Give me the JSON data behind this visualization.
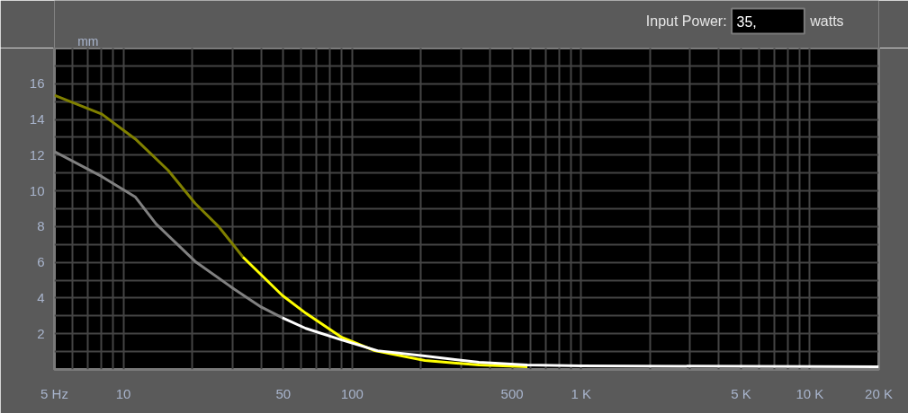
{
  "chart_data": {
    "type": "line",
    "ylabel": "mm",
    "log": "x",
    "grid": true,
    "xlim": [
      5,
      20000
    ],
    "ylim": [
      0,
      18
    ],
    "xticks": [
      {
        "value": 5,
        "label": "5 Hz"
      },
      {
        "value": 6,
        "label": null
      },
      {
        "value": 7,
        "label": null
      },
      {
        "value": 8,
        "label": null
      },
      {
        "value": 9,
        "label": null
      },
      10,
      {
        "value": 20,
        "label": null
      },
      {
        "value": 30,
        "label": null
      },
      {
        "value": 40,
        "label": null
      },
      50,
      {
        "value": 60,
        "label": null
      },
      {
        "value": 70,
        "label": null
      },
      {
        "value": 80,
        "label": null
      },
      {
        "value": 90,
        "label": null
      },
      100,
      {
        "value": 200,
        "label": null
      },
      {
        "value": 300,
        "label": null
      },
      {
        "value": 400,
        "label": null
      },
      500,
      {
        "value": 600,
        "label": null
      },
      {
        "value": 700,
        "label": null
      },
      {
        "value": 800,
        "label": null
      },
      {
        "value": 900,
        "label": null
      },
      {
        "value": 1000,
        "label": "1 K"
      },
      {
        "value": 2000,
        "label": null
      },
      {
        "value": 3000,
        "label": null
      },
      {
        "value": 4000,
        "label": null
      },
      {
        "value": 5000,
        "label": "5 K"
      },
      {
        "value": 6000,
        "label": null
      },
      {
        "value": 7000,
        "label": null
      },
      {
        "value": 8000,
        "label": null
      },
      {
        "value": 9000,
        "label": null
      },
      {
        "value": 10000,
        "label": "10 K"
      },
      {
        "value": 20000,
        "label": "20 K"
      }
    ],
    "yticks": [
      {
        "value": 1,
        "label": null
      },
      2,
      {
        "value": 3,
        "label": null
      },
      4,
      {
        "value": 5,
        "label": null
      },
      6,
      {
        "value": 7,
        "label": null
      },
      8,
      {
        "value": 9,
        "label": null
      },
      10,
      {
        "value": 11,
        "label": null
      },
      12,
      {
        "value": 13,
        "label": null
      },
      14,
      {
        "value": 15,
        "label": null
      },
      16,
      {
        "value": 17,
        "label": null
      }
    ],
    "annotations": [
      "Input Power:",
      "35,",
      "watts"
    ],
    "series": [
      {
        "type": "line",
        "color": "#808000",
        "x": [
          5,
          8.06,
          11.3,
          15.7,
          20.6,
          26.1,
          33.3
        ],
        "values": [
          15.35,
          14.3,
          12.9,
          11.15,
          9.3,
          8.0,
          6.3
        ]
      },
      {
        "type": "line",
        "color": "#ffff00",
        "x": [
          33.3,
          49.5,
          62.7,
          90,
          125.6,
          208,
          358,
          583
        ],
        "values": [
          6.3,
          4.15,
          3.15,
          1.8,
          1.05,
          0.5,
          0.25,
          0.15
        ]
      },
      {
        "type": "line",
        "color": "#808080",
        "x": [
          5,
          8.06,
          11.3,
          13.9,
          20.6,
          30.5,
          40,
          49.5
        ],
        "values": [
          12.2,
          10.8,
          9.65,
          8.15,
          6.05,
          4.5,
          3.5,
          2.9
        ]
      },
      {
        "type": "line",
        "color": "#ffffff",
        "x": [
          49.5,
          62.7,
          90,
          129,
          208,
          358,
          583,
          1000,
          20000
        ],
        "values": [
          2.9,
          2.3,
          1.65,
          1.05,
          0.75,
          0.4,
          0.25,
          0.2,
          0.15
        ]
      }
    ]
  }
}
